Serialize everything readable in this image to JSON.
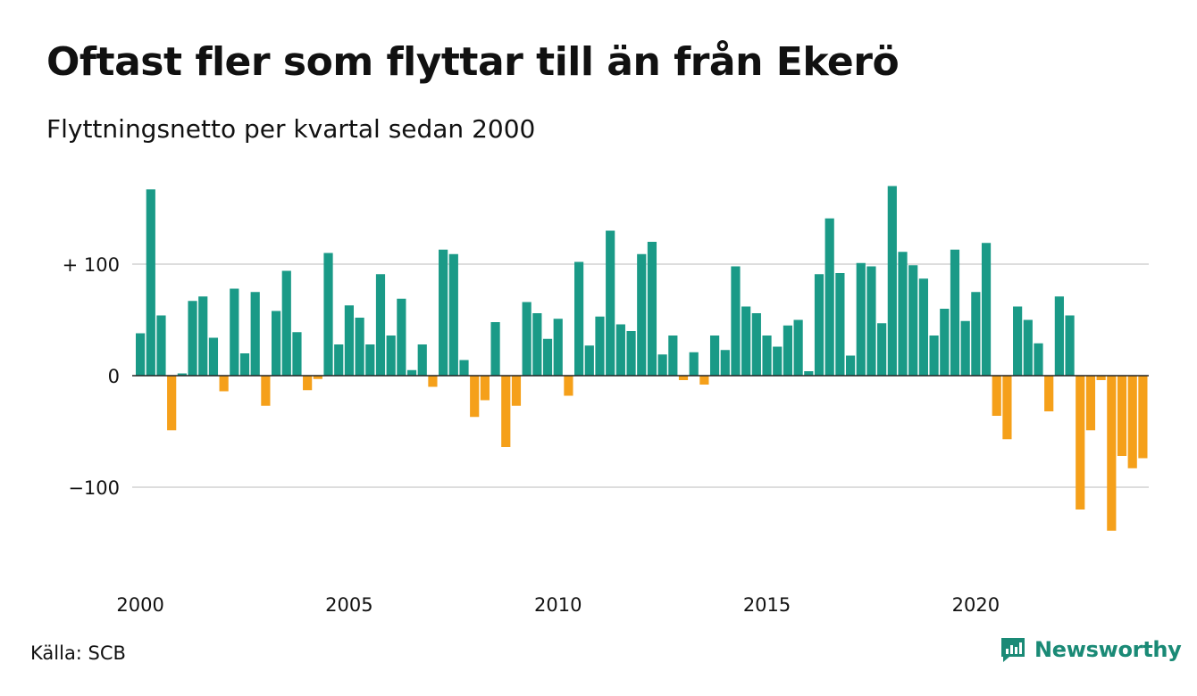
{
  "title": "Oftast fler som flyttar till än från Ekerö",
  "subtitle": "Flyttningsnetto per kvartal sedan 2000",
  "source": "Källa: SCB",
  "brand": {
    "name": "Newsworthy",
    "icon": "newsworthy-logo-icon"
  },
  "colors": {
    "positive": "#1a9a87",
    "negative": "#f5a01a",
    "grid": "#dddddd",
    "zero_line": "#222222",
    "brand": "#1a8a76"
  },
  "chart_data": {
    "type": "bar",
    "xlabel": "",
    "ylabel": "",
    "ylim": [
      -165,
      175
    ],
    "grid": true,
    "y_ticks": [
      {
        "value": 100,
        "label": "+ 100"
      },
      {
        "value": 0,
        "label": "0"
      },
      {
        "value": -100,
        "label": "−100"
      }
    ],
    "x_ticks": [
      {
        "quarter_index": 0,
        "label": "2000"
      },
      {
        "quarter_index": 20,
        "label": "2005"
      },
      {
        "quarter_index": 40,
        "label": "2010"
      },
      {
        "quarter_index": 60,
        "label": "2015"
      },
      {
        "quarter_index": 80,
        "label": "2020"
      }
    ],
    "start": "2000 Q1",
    "frequency": "quarterly",
    "values": [
      38,
      167,
      54,
      -49,
      2,
      67,
      71,
      34,
      -14,
      78,
      20,
      75,
      -27,
      58,
      94,
      39,
      -13,
      -3,
      110,
      28,
      63,
      52,
      28,
      91,
      36,
      69,
      5,
      28,
      -10,
      113,
      109,
      14,
      -37,
      -22,
      48,
      -64,
      -27,
      66,
      56,
      33,
      51,
      -18,
      102,
      27,
      53,
      130,
      46,
      40,
      109,
      120,
      19,
      36,
      -4,
      21,
      -8,
      36,
      23,
      98,
      62,
      56,
      36,
      26,
      45,
      50,
      4,
      91,
      141,
      92,
      18,
      101,
      98,
      47,
      170,
      111,
      99,
      87,
      36,
      60,
      113,
      49,
      75,
      119,
      -36,
      -57,
      62,
      50,
      29,
      -32,
      71,
      54,
      -120,
      -49,
      -4,
      -139,
      -72,
      -83,
      -74
    ]
  }
}
